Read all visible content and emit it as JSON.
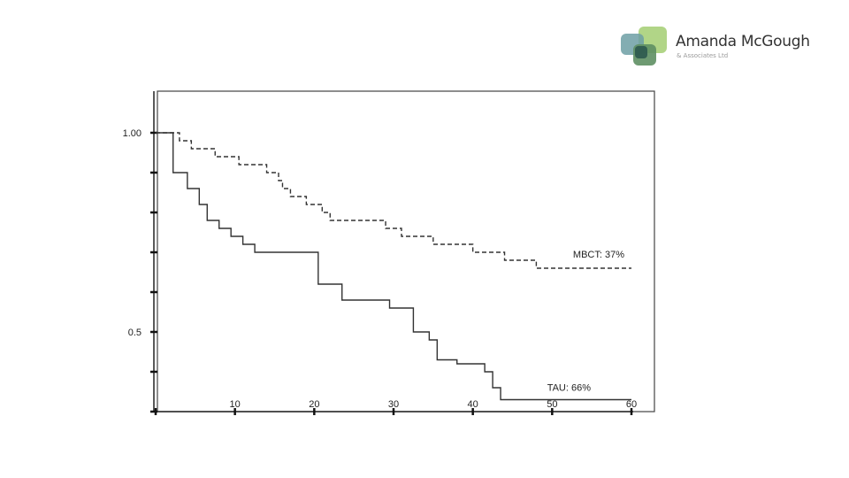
{
  "logo": {
    "name": "Amanda McGough",
    "subtitle": "& Associates Ltd",
    "colors": [
      "#a8d07a",
      "#7fb36a",
      "#6d9fa5",
      "#2f5c50"
    ]
  },
  "chart_data": {
    "type": "line",
    "title": "",
    "xlabel": "",
    "ylabel": "",
    "xlim": [
      0,
      60
    ],
    "ylim": [
      0.3,
      1.0
    ],
    "x_ticks": [
      10,
      20,
      30,
      40,
      50,
      60
    ],
    "y_ticks": [
      0.3,
      0.4,
      0.5,
      0.6,
      0.7,
      0.8,
      0.9,
      1.0
    ],
    "y_tick_labels": [
      {
        "value": 1.0,
        "label": "1.00"
      },
      {
        "value": 0.5,
        "label": "0.5"
      }
    ],
    "grid": false,
    "legend": "none",
    "series": [
      {
        "name": "MBCT: 37%",
        "style": "dashed",
        "step": true,
        "points": [
          [
            0,
            1.0
          ],
          [
            3,
            0.98
          ],
          [
            4.5,
            0.96
          ],
          [
            7.5,
            0.94
          ],
          [
            10.5,
            0.92
          ],
          [
            14,
            0.9
          ],
          [
            15.5,
            0.88
          ],
          [
            16,
            0.86
          ],
          [
            17,
            0.84
          ],
          [
            19,
            0.82
          ],
          [
            21,
            0.8
          ],
          [
            22,
            0.78
          ],
          [
            29,
            0.76
          ],
          [
            31,
            0.74
          ],
          [
            35,
            0.72
          ],
          [
            40,
            0.7
          ],
          [
            44,
            0.68
          ],
          [
            48,
            0.66
          ],
          [
            60,
            0.66
          ]
        ]
      },
      {
        "name": "TAU: 66%",
        "style": "solid",
        "step": true,
        "points": [
          [
            0,
            1.0
          ],
          [
            2.2,
            0.9
          ],
          [
            4,
            0.86
          ],
          [
            5.5,
            0.82
          ],
          [
            6.5,
            0.78
          ],
          [
            8,
            0.76
          ],
          [
            9.5,
            0.74
          ],
          [
            11,
            0.72
          ],
          [
            12.5,
            0.7
          ],
          [
            20.5,
            0.62
          ],
          [
            23.5,
            0.58
          ],
          [
            29.5,
            0.56
          ],
          [
            32.5,
            0.5
          ],
          [
            34.5,
            0.48
          ],
          [
            35.5,
            0.43
          ],
          [
            38,
            0.42
          ],
          [
            41.5,
            0.4
          ],
          [
            42.5,
            0.36
          ],
          [
            43.5,
            0.33
          ],
          [
            60,
            0.33
          ]
        ]
      }
    ]
  }
}
